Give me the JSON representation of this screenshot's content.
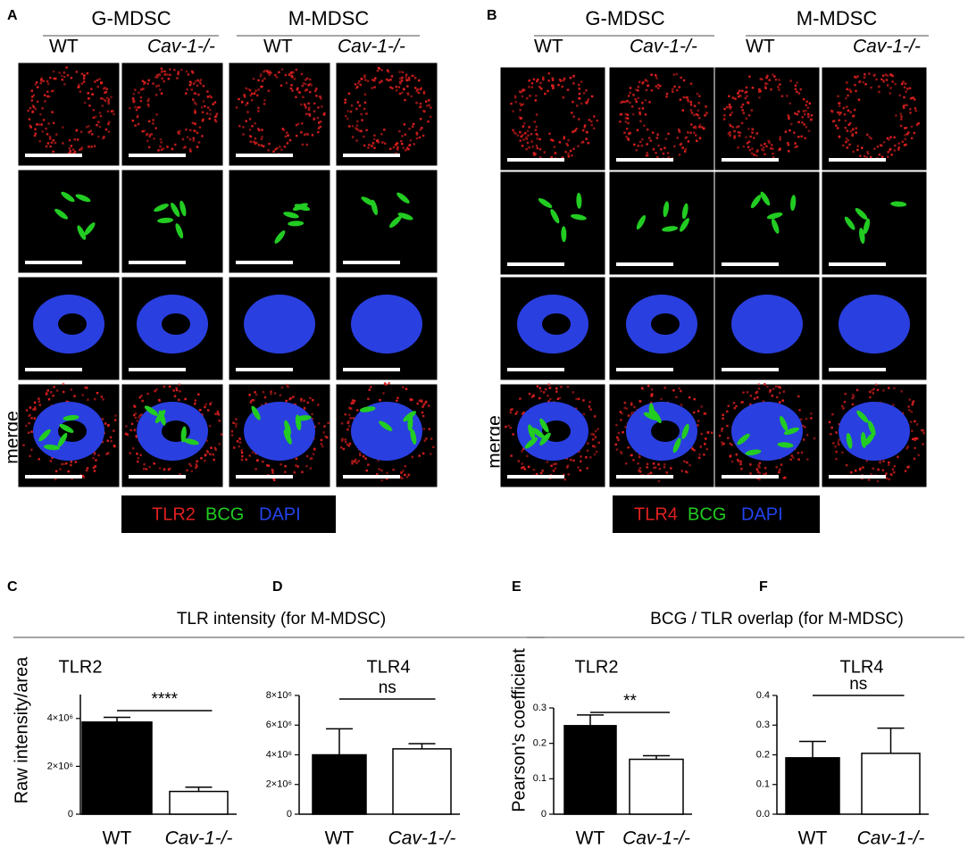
{
  "panels": [
    {
      "label": "A",
      "groups": [
        "G-MDSC",
        "M-MDSC"
      ],
      "columns": [
        "WT",
        "Cav-1-/-",
        "WT",
        "Cav-1-/-"
      ],
      "row_label": "merge",
      "legend": [
        "TLR2",
        "BCG",
        "DAPI"
      ]
    },
    {
      "label": "B",
      "groups": [
        "G-MDSC",
        "M-MDSC"
      ],
      "columns": [
        "WT",
        "Cav-1-/-",
        "WT",
        "Cav-1-/-"
      ],
      "row_label": "merge",
      "legend": [
        "TLR4",
        "BCG",
        "DAPI"
      ]
    }
  ],
  "chart_data": [
    {
      "type": "bar",
      "panel": "C",
      "title": "TLR intensity (for M-MDSC)",
      "subtitle": "TLR2",
      "ylabel": "Raw intensity/area",
      "categories": [
        "WT",
        "Cav-1-/-"
      ],
      "values": [
        3850000,
        950000
      ],
      "errors": [
        200000,
        180000
      ],
      "colors": [
        "#000000",
        "#ffffff"
      ],
      "ylim": [
        0,
        5000000
      ],
      "yticks": [
        0,
        {
          "value": 2000000,
          "label": "2×10⁶"
        },
        {
          "value": 4000000,
          "label": "4×10⁶"
        }
      ],
      "annotation": "****"
    },
    {
      "type": "bar",
      "panel": "D",
      "subtitle": "TLR4",
      "categories": [
        "WT",
        "Cav-1-/-"
      ],
      "values": [
        4000000,
        4400000
      ],
      "errors": [
        1750000,
        350000
      ],
      "colors": [
        "#000000",
        "#ffffff"
      ],
      "ylim": [
        0,
        8000000
      ],
      "yticks": [
        0,
        {
          "value": 2000000,
          "label": "2×10⁶"
        },
        {
          "value": 4000000,
          "label": "4×10⁶"
        },
        {
          "value": 6000000,
          "label": "6×10⁶"
        },
        {
          "value": 8000000,
          "label": "8×10⁶"
        }
      ],
      "annotation": "ns"
    },
    {
      "type": "bar",
      "panel": "E",
      "title": "BCG / TLR overlap (for M-MDSC)",
      "subtitle": "TLR2",
      "ylabel": "Pearson's coefficient",
      "categories": [
        "WT",
        "Cav-1-/-"
      ],
      "values": [
        0.25,
        0.155
      ],
      "errors": [
        0.03,
        0.01
      ],
      "colors": [
        "#000000",
        "#ffffff"
      ],
      "ylim": [
        0,
        0.3
      ],
      "yticks": [
        0,
        0.1,
        0.2,
        0.3
      ],
      "annotation": "**"
    },
    {
      "type": "bar",
      "panel": "F",
      "subtitle": "TLR4",
      "categories": [
        "WT",
        "Cav-1-/-"
      ],
      "values": [
        0.19,
        0.205
      ],
      "errors": [
        0.055,
        0.085
      ],
      "colors": [
        "#000000",
        "#ffffff"
      ],
      "ylim": [
        0,
        0.4
      ],
      "yticks": [
        {
          "value": 0,
          "label": "0.0"
        },
        0.1,
        0.2,
        0.3,
        0.4
      ],
      "annotation": "ns"
    }
  ]
}
